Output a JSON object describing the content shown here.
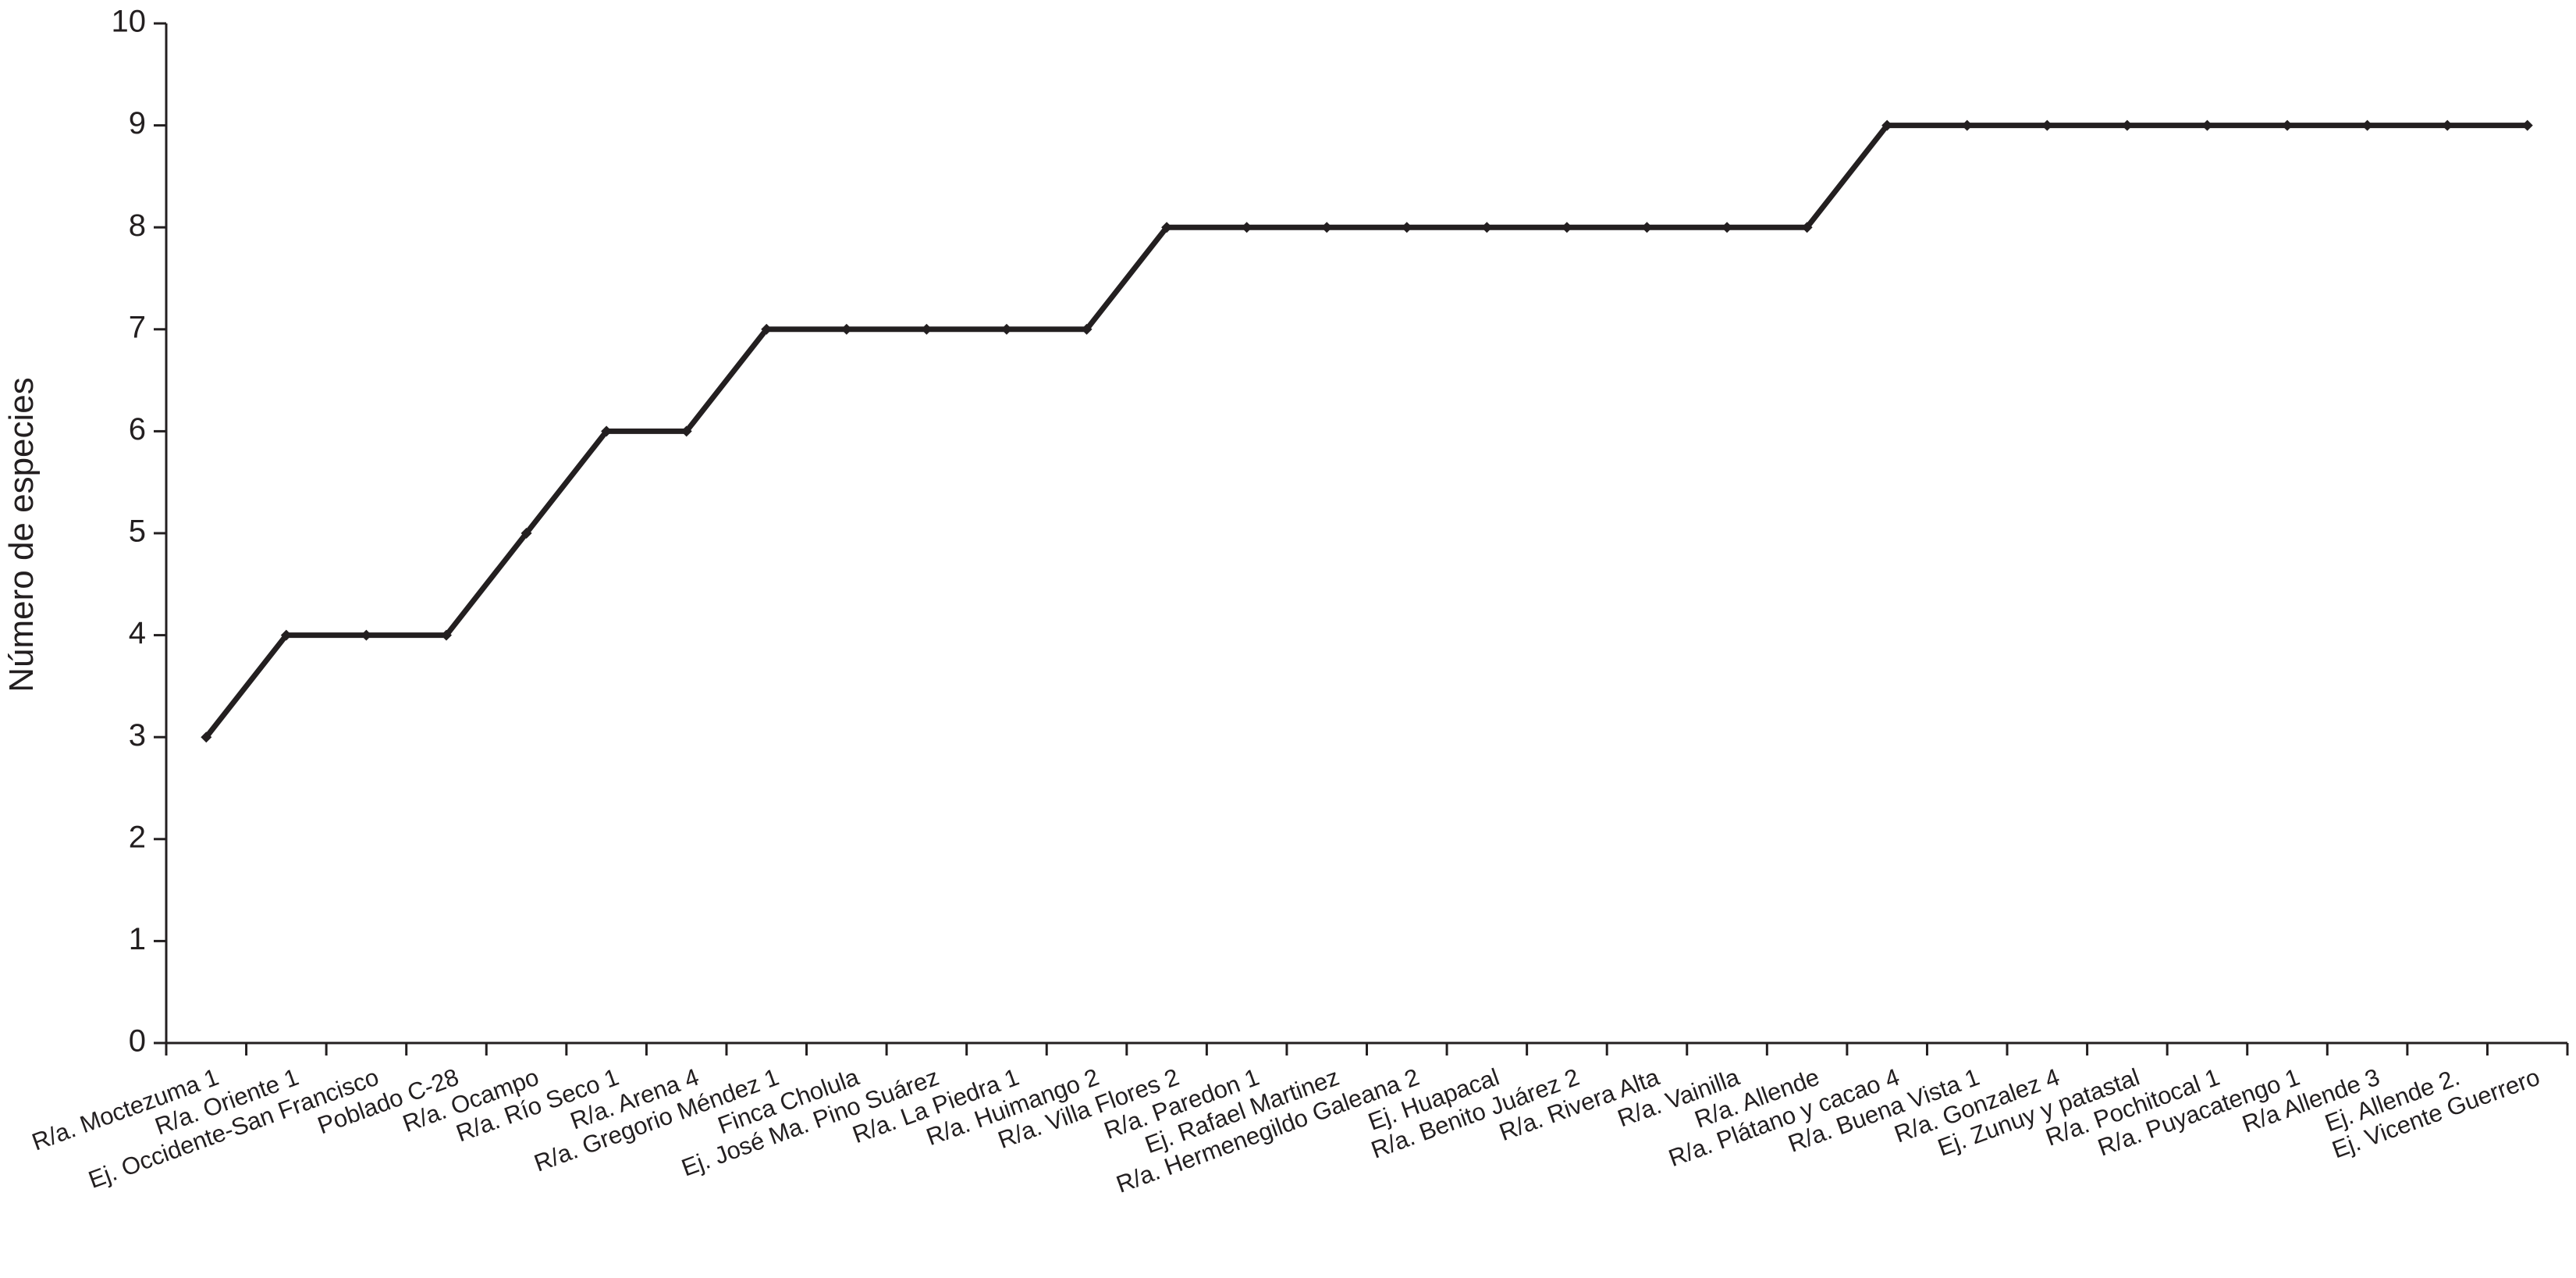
{
  "chart_data": {
    "type": "line",
    "y_label": "Número de especies",
    "categories": [
      "R/a. Moctezuma 1",
      "R/a. Oriente 1",
      "Ej. Occidente-San Francisco",
      "Poblado C-28",
      "R/a. Ocampo",
      "R/a. Río Seco 1",
      "R/a. Arena 4",
      "R/a. Gregorio Méndez 1",
      "Finca Cholula",
      "Ej. José Ma. Pino Suárez",
      "R/a. La Piedra 1",
      "R/a. Huimango 2",
      "R/a. Villa Flores 2",
      "R/a. Paredon 1",
      "Ej. Rafael Martinez",
      "R/a. Hermenegildo Galeana 2",
      "Ej. Huapacal",
      "R/a. Benito Juárez 2",
      "R/a. Rivera Alta",
      "R/a. Vainilla",
      "R/a. Allende",
      "R/a. Plátano y cacao 4",
      "R/a. Buena Vista 1",
      "R/a. Gonzalez 4",
      "Ej. Zunuy y patastal",
      "R/a. Pochitocal 1",
      "R/a. Puyacatengo 1",
      "R/a Allende 3",
      "Ej. Allende 2.",
      "Ej. Vicente Guerrero"
    ],
    "values": [
      3,
      4,
      4,
      4,
      5,
      6,
      6,
      7,
      7,
      7,
      7,
      7,
      8,
      8,
      8,
      8,
      8,
      8,
      8,
      8,
      8,
      9,
      9,
      9,
      9,
      9,
      9,
      9,
      9,
      9
    ],
    "color": "#231f20",
    "ylim": [
      0,
      10
    ],
    "yticks": [
      0,
      1,
      2,
      3,
      4,
      5,
      6,
      7,
      8,
      9,
      10
    ],
    "grid": false
  }
}
